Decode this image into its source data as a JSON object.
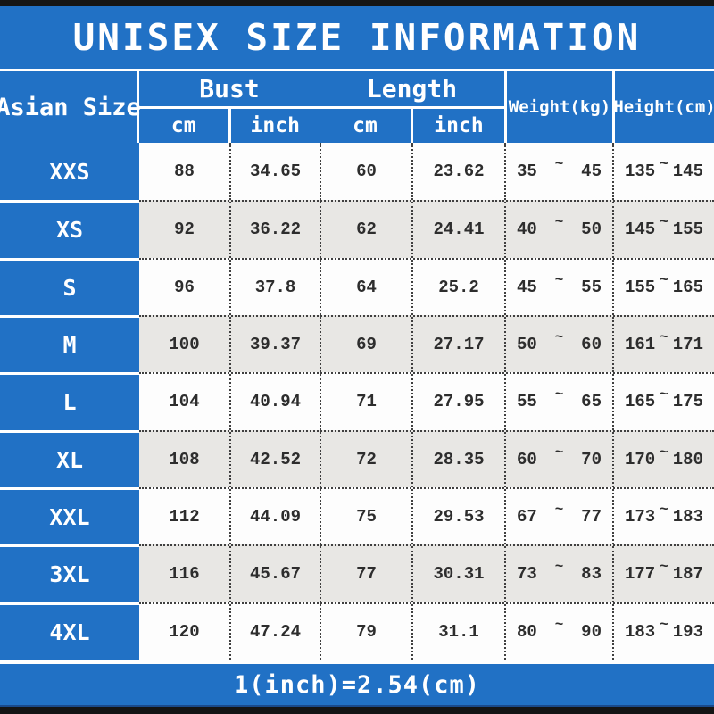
{
  "title": "UNISEX SIZE INFORMATION",
  "footer_note": "1(inch)=2.54(cm)",
  "tilde": "~",
  "colors": {
    "accent_blue": "#2171c5",
    "alt_row_gray": "#e8e7e4",
    "bar_black": "#161616",
    "text_dark": "#2d2d2d",
    "text_white": "#ffffff"
  },
  "header": {
    "size_col": "Asian Size",
    "bust": "Bust",
    "length": "Length",
    "cm": "cm",
    "inch": "inch",
    "weight": "Weight(kg)",
    "height": "Height(cm)"
  },
  "rows": [
    {
      "size": "XXS",
      "bust_cm": "88",
      "bust_inch": "34.65",
      "length_cm": "60",
      "length_inch": "23.62",
      "weight_min": "35",
      "weight_max": "45",
      "height_min": "135",
      "height_max": "145"
    },
    {
      "size": "XS",
      "bust_cm": "92",
      "bust_inch": "36.22",
      "length_cm": "62",
      "length_inch": "24.41",
      "weight_min": "40",
      "weight_max": "50",
      "height_min": "145",
      "height_max": "155"
    },
    {
      "size": "S",
      "bust_cm": "96",
      "bust_inch": "37.8",
      "length_cm": "64",
      "length_inch": "25.2",
      "weight_min": "45",
      "weight_max": "55",
      "height_min": "155",
      "height_max": "165"
    },
    {
      "size": "M",
      "bust_cm": "100",
      "bust_inch": "39.37",
      "length_cm": "69",
      "length_inch": "27.17",
      "weight_min": "50",
      "weight_max": "60",
      "height_min": "161",
      "height_max": "171"
    },
    {
      "size": "L",
      "bust_cm": "104",
      "bust_inch": "40.94",
      "length_cm": "71",
      "length_inch": "27.95",
      "weight_min": "55",
      "weight_max": "65",
      "height_min": "165",
      "height_max": "175"
    },
    {
      "size": "XL",
      "bust_cm": "108",
      "bust_inch": "42.52",
      "length_cm": "72",
      "length_inch": "28.35",
      "weight_min": "60",
      "weight_max": "70",
      "height_min": "170",
      "height_max": "180"
    },
    {
      "size": "XXL",
      "bust_cm": "112",
      "bust_inch": "44.09",
      "length_cm": "75",
      "length_inch": "29.53",
      "weight_min": "67",
      "weight_max": "77",
      "height_min": "173",
      "height_max": "183"
    },
    {
      "size": "3XL",
      "bust_cm": "116",
      "bust_inch": "45.67",
      "length_cm": "77",
      "length_inch": "30.31",
      "weight_min": "73",
      "weight_max": "83",
      "height_min": "177",
      "height_max": "187"
    },
    {
      "size": "4XL",
      "bust_cm": "120",
      "bust_inch": "47.24",
      "length_cm": "79",
      "length_inch": "31.1",
      "weight_min": "80",
      "weight_max": "90",
      "height_min": "183",
      "height_max": "193"
    }
  ]
}
